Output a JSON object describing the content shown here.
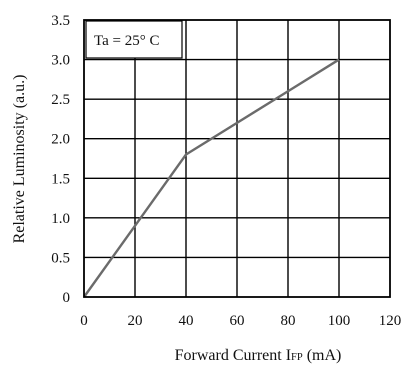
{
  "chart_data": {
    "type": "line",
    "xlabel": "Forward Current IFP (mA)",
    "xlabel_parts": {
      "main": "Forward Current I",
      "subscript": "FP",
      "unit": " (mA)"
    },
    "ylabel": "Relative Luminosity (a.u.)",
    "annotation": "Ta = 25° C",
    "xlim": [
      0,
      120
    ],
    "ylim": [
      0,
      3.5
    ],
    "x_ticks": [
      "0",
      "20",
      "40",
      "60",
      "80",
      "100",
      "120"
    ],
    "y_ticks": [
      "0",
      "0.5",
      "1.0",
      "1.5",
      "2.0",
      "2.5",
      "3.0",
      "3.5"
    ],
    "grid": true,
    "series": [
      {
        "x": [
          0,
          20,
          40,
          60,
          80,
          100
        ],
        "y": [
          0,
          0.9,
          1.8,
          2.2,
          2.6,
          3.0
        ]
      }
    ]
  }
}
